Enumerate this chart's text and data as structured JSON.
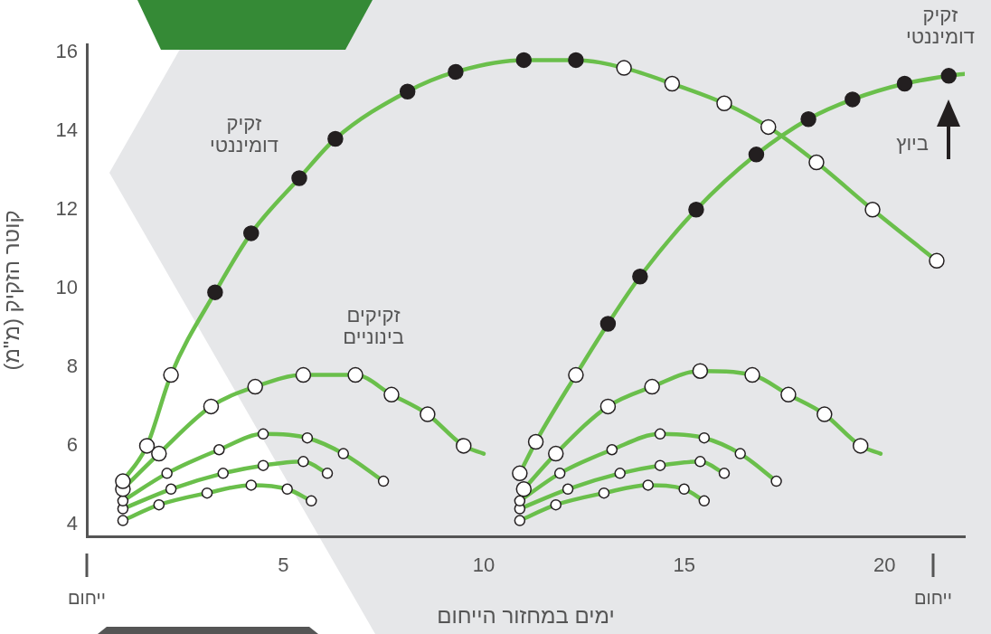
{
  "chart_data": {
    "type": "line",
    "xlabel": "ימים במחזור הייחום",
    "ylabel": "קוטר הזקיק (מ\"מ)",
    "xlim": [
      0.1,
      22
    ],
    "xticks": [
      5,
      10,
      15,
      20
    ],
    "ylim": [
      3.7,
      16.2
    ],
    "yticks": [
      4,
      6,
      8,
      10,
      12,
      14,
      16
    ],
    "grid": false,
    "legend": false,
    "marker": "circle",
    "line_style": "solid",
    "annotations": [
      "זקיק דומיננטי",
      "זקיקים בינוניים",
      "זקיק דומיננטי",
      "ביוץ",
      "ייחום",
      "ייחום"
    ],
    "series": [
      {
        "color": "#6abf4b",
        "x": [
          1.0,
          1.6,
          2.2,
          3.3,
          4.2,
          5.4,
          6.3,
          8.1,
          9.3,
          11.0,
          12.3,
          13.5,
          14.7,
          16.0,
          17.1,
          18.3,
          19.7,
          21.3
        ],
        "values": [
          5.1,
          6.0,
          7.8,
          9.9,
          11.4,
          12.8,
          13.8,
          15.0,
          15.5,
          15.8,
          15.8,
          15.6,
          15.2,
          14.7,
          14.1,
          13.2,
          12.0,
          10.7
        ],
        "colors": [
          "#ffffff",
          "#ffffff",
          "#ffffff",
          "#231f20",
          "#231f20",
          "#231f20",
          "#231f20",
          "#231f20",
          "#231f20",
          "#231f20",
          "#231f20",
          "#ffffff",
          "#ffffff",
          "#ffffff",
          "#ffffff",
          "#ffffff",
          "#ffffff",
          "#ffffff"
        ]
      },
      {
        "color": "#6abf4b",
        "x": [
          10.9,
          11.3,
          12.3,
          13.1,
          13.9,
          15.3,
          16.8,
          18.1,
          19.2,
          20.5,
          21.6,
          22.0
        ],
        "values": [
          5.3,
          6.1,
          7.8,
          9.1,
          10.3,
          12.0,
          13.4,
          14.3,
          14.8,
          15.2,
          15.4,
          15.45
        ],
        "colors": [
          "#ffffff",
          "#ffffff",
          "#ffffff",
          "#231f20",
          "#231f20",
          "#231f20",
          "#231f20",
          "#231f20",
          "#231f20",
          "#231f20",
          "#231f20",
          null
        ]
      },
      {
        "color": "#6abf4b",
        "x": [
          1.0,
          1.9,
          3.2,
          4.3,
          5.5,
          6.8,
          7.7,
          8.6,
          9.5,
          10.0
        ],
        "values": [
          4.9,
          5.8,
          7.0,
          7.5,
          7.8,
          7.8,
          7.3,
          6.8,
          6.0,
          5.8
        ],
        "colors": [
          "#ffffff",
          "#ffffff",
          "#ffffff",
          "#ffffff",
          "#ffffff",
          "#ffffff",
          "#ffffff",
          "#ffffff",
          "#ffffff",
          null
        ]
      },
      {
        "color": "#6abf4b",
        "x": [
          11.0,
          11.8,
          13.1,
          14.2,
          15.4,
          16.7,
          17.6,
          18.5,
          19.4,
          19.9
        ],
        "values": [
          4.9,
          5.8,
          7.0,
          7.5,
          7.9,
          7.8,
          7.3,
          6.8,
          6.0,
          5.8
        ],
        "colors": [
          "#ffffff",
          "#ffffff",
          "#ffffff",
          "#ffffff",
          "#ffffff",
          "#ffffff",
          "#ffffff",
          "#ffffff",
          "#ffffff",
          null
        ]
      },
      {
        "color": "#6abf4b",
        "x": [
          1.0,
          2.1,
          3.4,
          4.5,
          5.6,
          6.5,
          7.5
        ],
        "values": [
          4.6,
          5.3,
          5.9,
          6.3,
          6.2,
          5.8,
          5.1
        ],
        "colors": [
          "#ffffff",
          "#ffffff",
          "#ffffff",
          "#ffffff",
          "#ffffff",
          "#ffffff",
          "#ffffff"
        ]
      },
      {
        "color": "#6abf4b",
        "x": [
          1.0,
          2.2,
          3.5,
          4.5,
          5.5,
          6.1
        ],
        "values": [
          4.4,
          4.9,
          5.3,
          5.5,
          5.6,
          5.3
        ],
        "colors": [
          "#ffffff",
          "#ffffff",
          "#ffffff",
          "#ffffff",
          "#ffffff",
          "#ffffff"
        ]
      },
      {
        "color": "#6abf4b",
        "x": [
          1.0,
          1.9,
          3.1,
          4.2,
          5.1,
          5.7
        ],
        "values": [
          4.1,
          4.5,
          4.8,
          5.0,
          4.9,
          4.6
        ],
        "colors": [
          "#ffffff",
          "#ffffff",
          "#ffffff",
          "#ffffff",
          "#ffffff",
          "#ffffff"
        ]
      },
      {
        "color": "#6abf4b",
        "x": [
          10.9,
          11.9,
          13.2,
          14.4,
          15.5,
          16.4,
          17.3
        ],
        "values": [
          4.6,
          5.3,
          5.9,
          6.3,
          6.2,
          5.8,
          5.1
        ],
        "colors": [
          "#ffffff",
          "#ffffff",
          "#ffffff",
          "#ffffff",
          "#ffffff",
          "#ffffff",
          "#ffffff"
        ]
      },
      {
        "color": "#6abf4b",
        "x": [
          10.9,
          12.1,
          13.4,
          14.4,
          15.4,
          16.0
        ],
        "values": [
          4.4,
          4.9,
          5.3,
          5.5,
          5.6,
          5.3
        ],
        "colors": [
          "#ffffff",
          "#ffffff",
          "#ffffff",
          "#ffffff",
          "#ffffff",
          "#ffffff"
        ]
      },
      {
        "color": "#6abf4b",
        "x": [
          10.9,
          11.8,
          13.0,
          14.1,
          15.0,
          15.5
        ],
        "values": [
          4.1,
          4.5,
          4.8,
          5.0,
          4.9,
          4.6
        ],
        "colors": [
          "#ffffff",
          "#ffffff",
          "#ffffff",
          "#ffffff",
          "#ffffff",
          "#ffffff"
        ]
      }
    ]
  }
}
